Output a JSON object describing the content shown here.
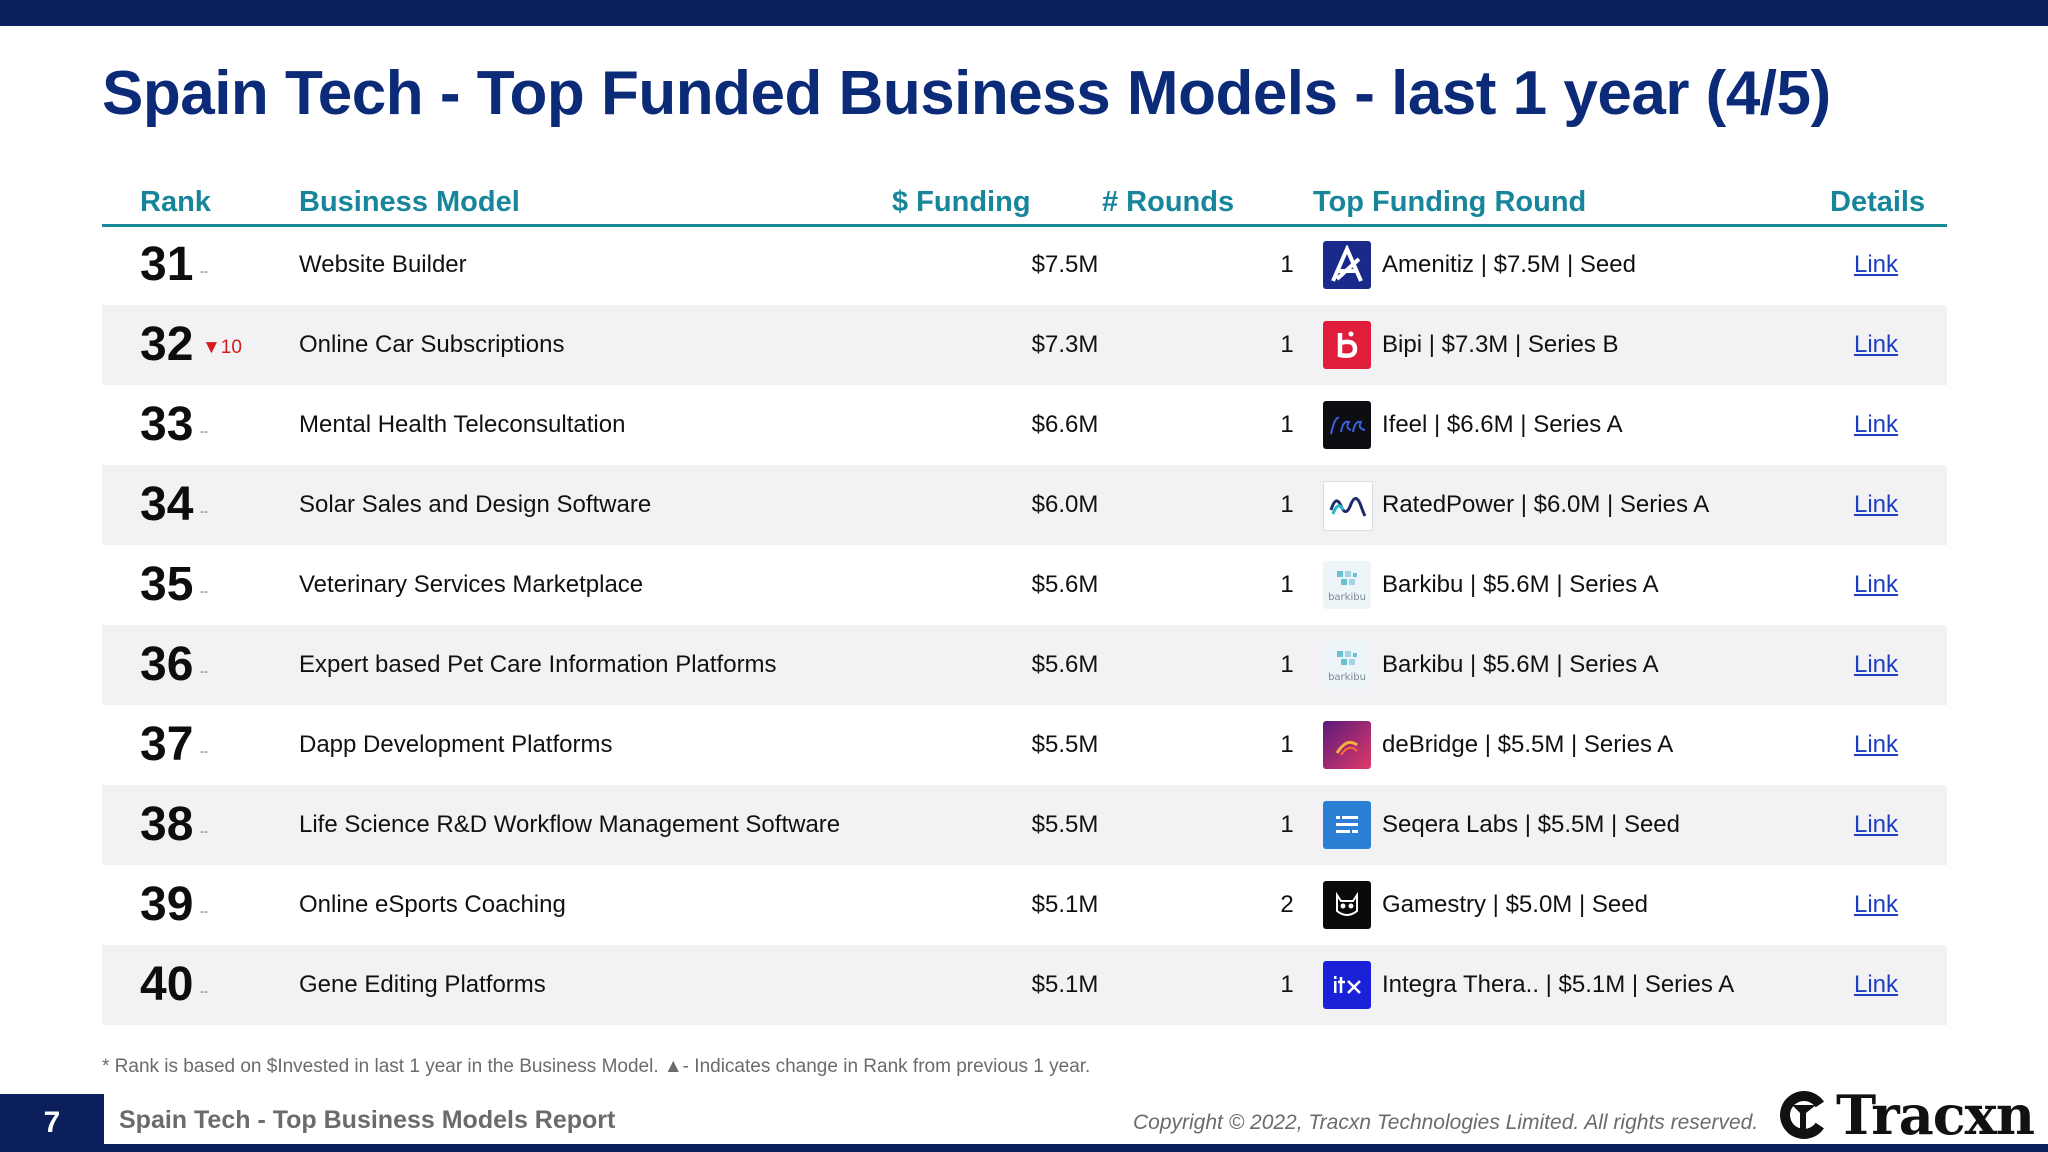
{
  "title": "Spain Tech - Top Funded Business Models - last 1 year (4/5)",
  "columns": {
    "rank": "Rank",
    "model": "Business Model",
    "funding": "$ Funding",
    "rounds": "# Rounds",
    "top_round": "Top Funding Round",
    "details": "Details"
  },
  "rows": [
    {
      "rank": "31",
      "change": "--",
      "model": "Website Builder",
      "funding": "$7.5M",
      "rounds": "1",
      "top_round": "Amenitiz | $7.5M | Seed",
      "link": "Link",
      "logo": "amenitiz-logo"
    },
    {
      "rank": "32",
      "change": "▼10",
      "model": "Online Car Subscriptions",
      "funding": "$7.3M",
      "rounds": "1",
      "top_round": "Bipi | $7.3M | Series B",
      "link": "Link",
      "logo": "bipi-logo"
    },
    {
      "rank": "33",
      "change": "--",
      "model": "Mental Health Teleconsultation",
      "funding": "$6.6M",
      "rounds": "1",
      "top_round": "Ifeel | $6.6M | Series A",
      "link": "Link",
      "logo": "ifeel-logo"
    },
    {
      "rank": "34",
      "change": "--",
      "model": "Solar Sales and Design Software",
      "funding": "$6.0M",
      "rounds": "1",
      "top_round": "RatedPower | $6.0M | Series A",
      "link": "Link",
      "logo": "ratedpower-logo"
    },
    {
      "rank": "35",
      "change": "--",
      "model": "Veterinary Services Marketplace",
      "funding": "$5.6M",
      "rounds": "1",
      "top_round": "Barkibu | $5.6M | Series A",
      "link": "Link",
      "logo": "barkibu-logo"
    },
    {
      "rank": "36",
      "change": "--",
      "model": "Expert based Pet Care Information Platforms",
      "funding": "$5.6M",
      "rounds": "1",
      "top_round": "Barkibu | $5.6M | Series A",
      "link": "Link",
      "logo": "barkibu-logo"
    },
    {
      "rank": "37",
      "change": "--",
      "model": "Dapp Development Platforms",
      "funding": "$5.5M",
      "rounds": "1",
      "top_round": "deBridge | $5.5M | Series A",
      "link": "Link",
      "logo": "debridge-logo"
    },
    {
      "rank": "38",
      "change": "--",
      "model": "Life Science R&D Workflow Management Software",
      "funding": "$5.5M",
      "rounds": "1",
      "top_round": "Seqera Labs | $5.5M | Seed",
      "link": "Link",
      "logo": "seqera-logo"
    },
    {
      "rank": "39",
      "change": "--",
      "model": "Online eSports Coaching",
      "funding": "$5.1M",
      "rounds": "2",
      "top_round": "Gamestry | $5.0M | Seed",
      "link": "Link",
      "logo": "gamestry-logo"
    },
    {
      "rank": "40",
      "change": "--",
      "model": "Gene Editing Platforms",
      "funding": "$5.1M",
      "rounds": "1",
      "top_round": "Integra Thera.. | $5.1M | Series A",
      "link": "Link",
      "logo": "integra-logo"
    }
  ],
  "footnote": "*  Rank is based on $Invested in last 1 year in the Business Model.  ▲- Indicates change in Rank from previous 1 year.",
  "footer": {
    "page_number": "7",
    "report_name": "Spain Tech - Top Business Models Report",
    "copyright": "Copyright © 2022, Tracxn Technologies Limited. All rights reserved.",
    "brand": "Tracxn"
  },
  "colors": {
    "navy": "#0b1f5c",
    "title": "#0b2a78",
    "header_teal": "#17869a",
    "down_red": "#d21a1a",
    "link_blue": "#1d3fbf"
  }
}
